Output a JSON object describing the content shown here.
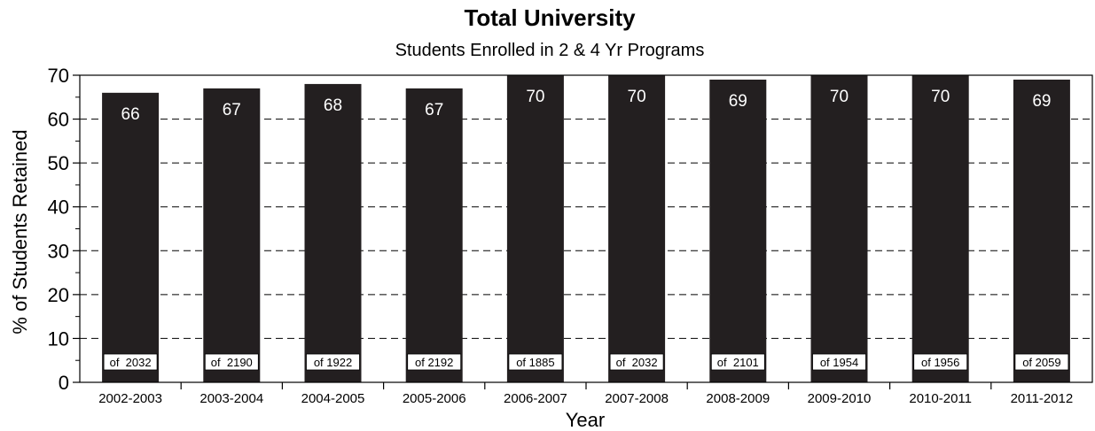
{
  "chart_data": {
    "type": "bar",
    "title": "Total University",
    "subtitle": "Students Enrolled in 2 & 4 Yr Programs",
    "xlabel": "Year",
    "ylabel": "% of Students Retained",
    "ylim": [
      0,
      70
    ],
    "yticks": [
      "0",
      "10",
      "20",
      "30",
      "40",
      "50",
      "60",
      "70"
    ],
    "grid": true,
    "bar_color": "#231f20",
    "categories": [
      "2002-2003",
      "2003-2004",
      "2004-2005",
      "2005-2006",
      "2006-2007",
      "2007-2008",
      "2008-2009",
      "2009-2010",
      "2010-2011",
      "2011-2012"
    ],
    "values": [
      66,
      67,
      68,
      67,
      70,
      70,
      69,
      70,
      70,
      69
    ],
    "value_labels": [
      "66",
      "67",
      "68",
      "67",
      "70",
      "70",
      "69",
      "70",
      "70",
      "69"
    ],
    "cohort_labels": [
      "of  2032",
      "of  2190",
      "of 1922",
      "of 2192",
      "of 1885",
      "of  2032",
      "of  2101",
      "of 1954",
      "of 1956",
      "of 2059"
    ]
  }
}
